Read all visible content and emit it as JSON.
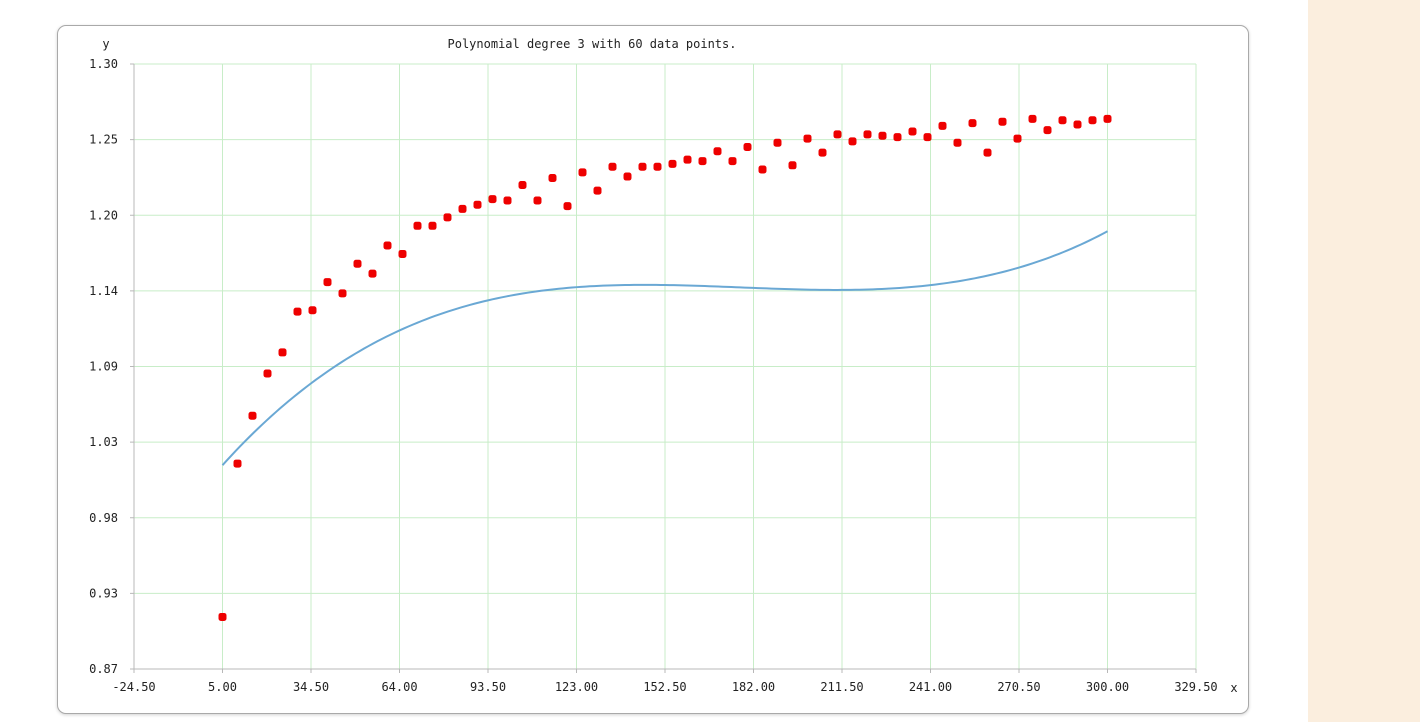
{
  "colors": {
    "grid": "#c8edc8",
    "axis": "#b8b8b8",
    "points": "#ee0000",
    "curve": "#6aa8d4",
    "side_panel": "#fbeede"
  },
  "chart_data": {
    "type": "scatter",
    "title": "Polynomial degree 3 with 60 data points.",
    "xlabel": "x",
    "ylabel": "y",
    "xlim": [
      -24.5,
      329.5
    ],
    "ylim": [
      0.87,
      1.3
    ],
    "grid": true,
    "x_ticks": [
      "-24.50",
      "5.00",
      "34.50",
      "64.00",
      "93.50",
      "123.00",
      "152.50",
      "182.00",
      "211.50",
      "241.00",
      "270.50",
      "300.00",
      "329.50"
    ],
    "y_ticks": [
      "0.87",
      "0.93",
      "0.98",
      "1.03",
      "1.09",
      "1.14",
      "1.20",
      "1.25",
      "1.30"
    ],
    "series": [
      {
        "kind": "points",
        "x": [
          5,
          10,
          15,
          20,
          25,
          30,
          35,
          40,
          45,
          50,
          55,
          60,
          65,
          70,
          75,
          80,
          85,
          90,
          95,
          100,
          105,
          110,
          115,
          120,
          125,
          130,
          135,
          140,
          145,
          150,
          155,
          160,
          165,
          170,
          175,
          180,
          185,
          190,
          195,
          200,
          205,
          210,
          215,
          220,
          225,
          230,
          235,
          240,
          245,
          250,
          255,
          260,
          265,
          270,
          275,
          280,
          285,
          290,
          295,
          300
        ],
        "y": [
          0.907,
          1.016,
          1.05,
          1.08,
          1.095,
          1.124,
          1.125,
          1.145,
          1.137,
          1.158,
          1.151,
          1.171,
          1.165,
          1.185,
          1.185,
          1.191,
          1.197,
          1.2,
          1.204,
          1.203,
          1.214,
          1.203,
          1.219,
          1.199,
          1.223,
          1.21,
          1.227,
          1.22,
          1.227,
          1.227,
          1.229,
          1.232,
          1.231,
          1.238,
          1.231,
          1.241,
          1.225,
          1.244,
          1.228,
          1.247,
          1.237,
          1.25,
          1.245,
          1.25,
          1.249,
          1.248,
          1.252,
          1.248,
          1.256,
          1.244,
          1.258,
          1.237,
          1.259,
          1.247,
          1.261,
          1.253,
          1.26,
          1.257,
          1.26,
          1.261
        ]
      },
      {
        "kind": "polynomial-fit",
        "degree": 3,
        "x_range": [
          5,
          300
        ],
        "coefficients": [
          1.002696,
          0.0025087,
          -1.46e-05,
          2.74e-08
        ]
      }
    ]
  }
}
